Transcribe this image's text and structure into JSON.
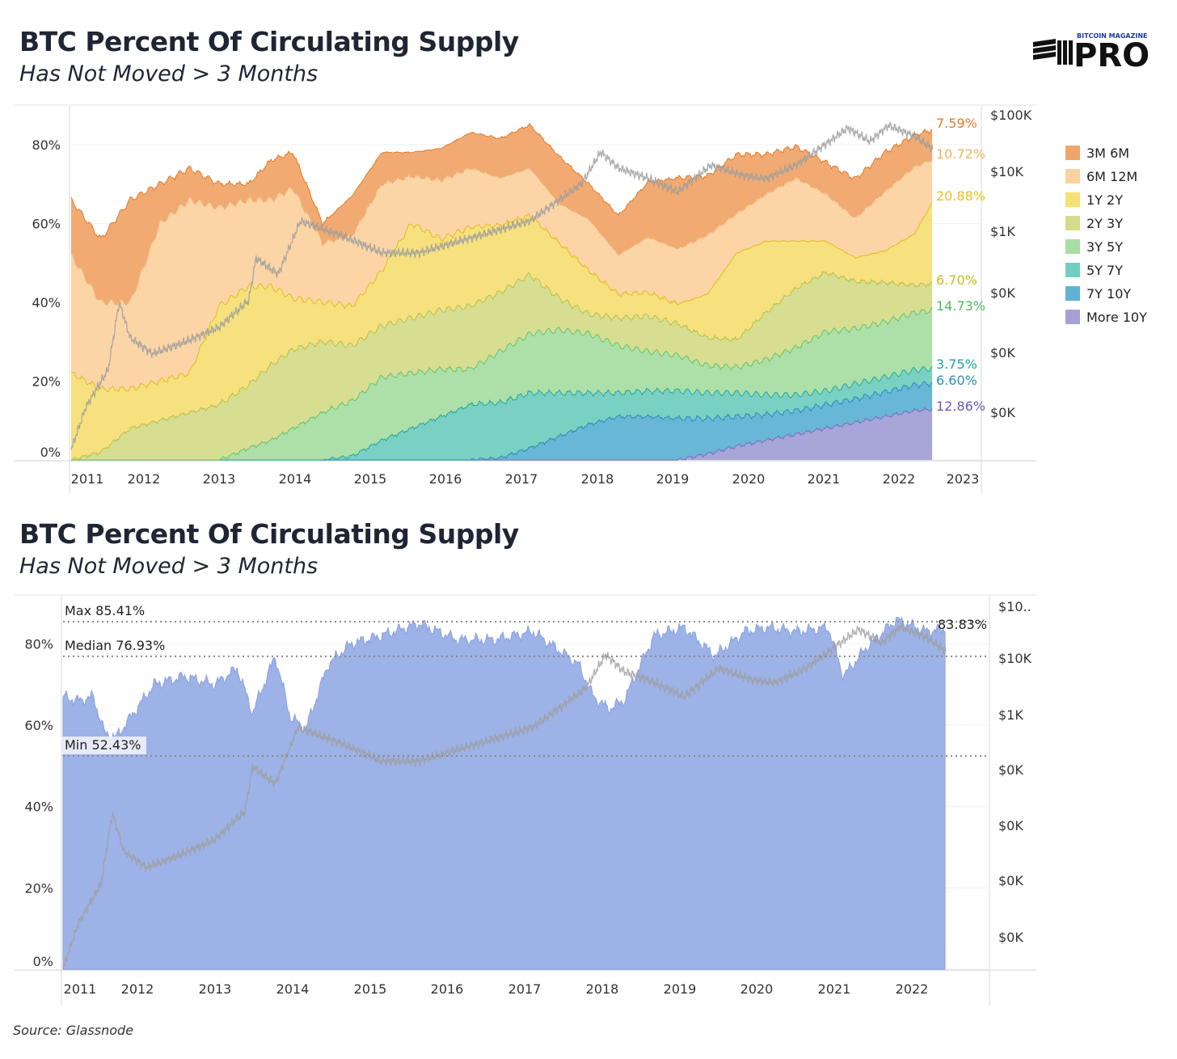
{
  "logo": {
    "top_text": "BITCOIN MAGAZINE",
    "main_text": "PRO"
  },
  "source": "Source: Glassnode",
  "colors": {
    "3M 6M": "#f0a66a",
    "6M 12M": "#fbd3a0",
    "1Y 2Y": "#f6df77",
    "2Y 3Y": "#d5dc8c",
    "3Y 5Y": "#a8dea3",
    "5Y 7Y": "#73cdbf",
    "7Y 10Y": "#61b3d4",
    "More 10Y": "#a3a1d6",
    "hodl_fill": "#9db2e6",
    "price": "#a8a8a8"
  },
  "chart_data": [
    {
      "type": "area",
      "title": "BTC Percent Of Circulating Supply",
      "subtitle": "Has Not Moved > 3 Months",
      "stacked": true,
      "x": [
        2010.8,
        2011.2,
        2011.6,
        2012.0,
        2012.4,
        2012.8,
        2013.2,
        2013.5,
        2013.8,
        2014.2,
        2014.6,
        2015.0,
        2015.4,
        2015.8,
        2016.2,
        2016.6,
        2017.0,
        2017.4,
        2017.8,
        2018.2,
        2018.6,
        2019.0,
        2019.4,
        2019.8,
        2020.2,
        2020.6,
        2021.0,
        2021.4,
        2021.8,
        2022.2,
        2022.45
      ],
      "series": [
        {
          "name": "More 10Y",
          "values": [
            0,
            0,
            0,
            0,
            0,
            0,
            0,
            0,
            0,
            0,
            0,
            0,
            0,
            0,
            0,
            0,
            0,
            0,
            0,
            0,
            0,
            0,
            1.5,
            3.5,
            5,
            6.5,
            8,
            9.5,
            11,
            12.5,
            12.86
          ]
        },
        {
          "name": "7Y 10Y",
          "values": [
            0,
            0,
            0,
            0,
            0,
            0,
            0,
            0,
            0,
            0,
            0,
            0,
            0,
            0,
            0,
            0.5,
            3,
            6,
            9,
            11,
            11,
            10.5,
            9,
            7.5,
            6.5,
            6,
            6,
            6,
            6.2,
            6.5,
            6.6
          ]
        },
        {
          "name": "5Y 7Y",
          "values": [
            0,
            0,
            0,
            0,
            0,
            0,
            0,
            0,
            0,
            0,
            1,
            5,
            8,
            11,
            14,
            14,
            14,
            11,
            8,
            6,
            6.5,
            7,
            6.5,
            6,
            5,
            4,
            3.5,
            3.8,
            3.8,
            3.8,
            3.75
          ]
        },
        {
          "name": "3Y 5Y",
          "values": [
            0,
            0,
            0,
            0,
            0,
            0,
            3,
            5,
            8,
            12,
            14,
            16,
            14,
            12,
            9,
            13,
            15,
            16,
            15,
            12,
            10,
            9,
            7,
            6.5,
            9,
            12,
            15,
            14,
            14,
            14.5,
            14.73
          ]
        },
        {
          "name": "2Y 3Y",
          "values": [
            0,
            2,
            8,
            10,
            12,
            14,
            16,
            19,
            20,
            18,
            14,
            13,
            14,
            15,
            16,
            15,
            15,
            8,
            5,
            7,
            9,
            8,
            7,
            7,
            12,
            15,
            15,
            12,
            10,
            7,
            6.7
          ]
        },
        {
          "name": "1Y 2Y",
          "values": [
            22,
            16,
            10,
            10,
            10,
            25,
            25,
            20,
            13,
            10,
            10,
            14,
            24,
            18,
            20,
            17,
            15,
            14,
            11,
            6,
            6,
            5,
            11,
            22,
            18,
            12,
            8,
            6,
            8,
            13,
            20.88
          ]
        },
        {
          "name": "6M 12M",
          "values": [
            30,
            22,
            22,
            40,
            44,
            25,
            22,
            22,
            28,
            15,
            18,
            22,
            12,
            15,
            15,
            12,
            12,
            10,
            13,
            10,
            14,
            14,
            15,
            10,
            12,
            16,
            12,
            10,
            15,
            17,
            10.72
          ]
        },
        {
          "name": "3M 6M",
          "values": [
            14,
            16,
            26,
            10,
            8,
            6,
            4,
            10,
            9,
            5,
            10,
            8,
            6,
            8,
            9,
            10,
            11,
            12,
            9,
            10,
            14,
            18,
            15,
            15,
            10,
            8,
            8,
            10,
            10,
            8,
            7.59
          ]
        }
      ],
      "end_labels": [
        "7.59%",
        "10.72%",
        "20.88%",
        "6.70%",
        "14.73%",
        "3.75%",
        "6.60%",
        "12.86%"
      ],
      "x_ticks": [
        "2011",
        "2012",
        "2013",
        "2014",
        "2015",
        "2016",
        "2017",
        "2018",
        "2019",
        "2020",
        "2021",
        "2022",
        "2023"
      ],
      "y_ticks": [
        "0%",
        "20%",
        "40%",
        "60%",
        "80%"
      ],
      "ylim": [
        0,
        90
      ],
      "y2_ticks": [
        "$100K",
        "$10K",
        "$1K",
        "$0K",
        "$0K",
        "$0K"
      ],
      "legend": [
        "3M 6M",
        "6M 12M",
        "1Y 2Y",
        "2Y 3Y",
        "3Y 5Y",
        "5Y 7Y",
        "7Y 10Y",
        "More 10Y"
      ],
      "legend_position": "right",
      "price_series": {
        "x": [
          2010.8,
          2011.0,
          2011.3,
          2011.45,
          2011.6,
          2011.9,
          2012.3,
          2012.8,
          2013.2,
          2013.3,
          2013.6,
          2013.9,
          2014.1,
          2014.5,
          2015.0,
          2015.5,
          2016.0,
          2016.5,
          2017.0,
          2017.4,
          2017.7,
          2017.96,
          2018.2,
          2018.6,
          2019.0,
          2019.45,
          2019.9,
          2020.2,
          2020.6,
          2021.0,
          2021.3,
          2021.6,
          2021.85,
          2022.2,
          2022.45
        ],
        "log_price": [
          -1.3,
          -0.5,
          0.2,
          1.47,
          0.8,
          0.5,
          0.7,
          1.0,
          1.5,
          2.3,
          2.0,
          3.0,
          2.9,
          2.7,
          2.4,
          2.4,
          2.6,
          2.8,
          3.0,
          3.4,
          3.7,
          4.3,
          4.0,
          3.8,
          3.55,
          4.05,
          3.85,
          3.8,
          4.05,
          4.45,
          4.75,
          4.5,
          4.8,
          4.6,
          4.35
        ]
      }
    },
    {
      "type": "area",
      "title": "BTC Percent Of Circulating Supply",
      "subtitle": "Has Not Moved > 3 Months",
      "x": [
        2010.8,
        2011.0,
        2011.2,
        2011.35,
        2011.5,
        2012.0,
        2012.4,
        2012.8,
        2013.1,
        2013.3,
        2013.6,
        2013.8,
        2014.0,
        2014.3,
        2014.6,
        2015.0,
        2015.5,
        2016.0,
        2016.5,
        2017.0,
        2017.3,
        2017.6,
        2017.8,
        2018.0,
        2018.2,
        2018.6,
        2019.0,
        2019.4,
        2019.8,
        2020.1,
        2020.5,
        2020.9,
        2021.1,
        2021.4,
        2021.8,
        2022.2,
        2022.45
      ],
      "values": [
        67,
        66,
        67,
        58,
        57,
        70,
        72,
        70,
        74,
        63,
        77,
        62,
        59,
        75,
        80,
        82,
        85,
        81,
        81,
        83,
        79,
        75,
        67,
        64,
        66,
        82,
        84,
        77,
        83,
        84,
        83,
        84,
        72,
        79,
        86,
        83,
        83.83
      ],
      "last_label": "83.83%",
      "reference_lines": [
        {
          "label": "Max 85.41%",
          "value": 85.41
        },
        {
          "label": "Median 76.93%",
          "value": 76.93
        },
        {
          "label": "Min 52.43%",
          "value": 52.43
        }
      ],
      "x_ticks": [
        "2011",
        "2012",
        "2013",
        "2014",
        "2015",
        "2016",
        "2017",
        "2018",
        "2019",
        "2020",
        "2021",
        "2022"
      ],
      "y_ticks": [
        "0%",
        "20%",
        "40%",
        "60%",
        "80%"
      ],
      "ylim": [
        0,
        92
      ],
      "y2_ticks": [
        "$10..",
        "$10K",
        "$1K",
        "$0K",
        "$0K",
        "$0K",
        "$0K"
      ]
    }
  ]
}
